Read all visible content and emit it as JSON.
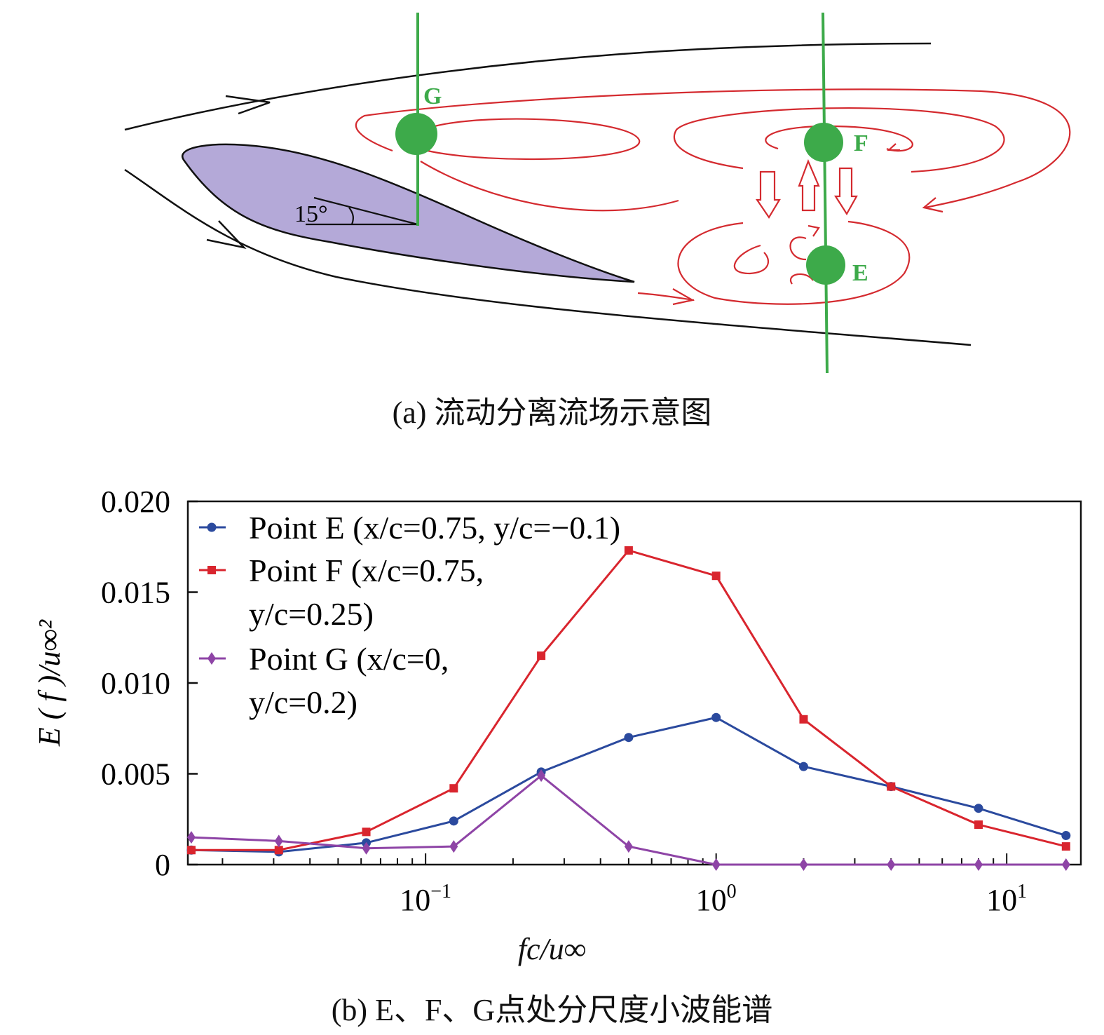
{
  "diagram": {
    "caption": "(a) 流动分离流场示意图",
    "labels": {
      "G": "G",
      "F": "F",
      "E": "E",
      "angle": "15°"
    },
    "colors": {
      "airfoil": "#b4a9d8",
      "streamline": "#111111",
      "vortex": "#d42a2f",
      "probe": "#3daa4a"
    }
  },
  "chart_data": {
    "type": "line",
    "caption": "(b) E、F、G点处分尺度小波能谱",
    "xlabel": "fc/u∞",
    "ylabel": "E ( f )/u∞²",
    "xscale": "log",
    "xlim": [
      0.0152,
      18
    ],
    "ylim": [
      0,
      0.02
    ],
    "yticks": [
      "0",
      "0.005",
      "0.010",
      "0.015",
      "0.020"
    ],
    "ytick_values": [
      0,
      0.005,
      0.01,
      0.015,
      0.02
    ],
    "xticks": [
      {
        "value": 0.1,
        "base": "10",
        "exp": "−1"
      },
      {
        "value": 1,
        "base": "10",
        "exp": "0"
      },
      {
        "value": 10,
        "base": "10",
        "exp": "1"
      }
    ],
    "grid": false,
    "legend_position": "top-left",
    "x": [
      0.015625,
      0.03125,
      0.0625,
      0.125,
      0.25,
      0.5,
      1,
      2,
      4,
      8,
      16
    ],
    "series": [
      {
        "name": "Point E (x/c=0.75, y/c=−0.1)",
        "legend_lines": [
          "Point E (x/c=0.75, y/c=−0.1)"
        ],
        "color": "#2b4a9e",
        "marker": "circle",
        "values": [
          0.0008,
          0.0007,
          0.0012,
          0.0024,
          0.0051,
          0.007,
          0.0081,
          0.0054,
          0.0043,
          0.0031,
          0.0016
        ]
      },
      {
        "name": "Point F (x/c=0.75, y/c=0.25)",
        "legend_lines": [
          "Point F (x/c=0.75,",
          "y/c=0.25)"
        ],
        "color": "#d9252e",
        "marker": "square",
        "values": [
          0.0008,
          0.0008,
          0.0018,
          0.0042,
          0.0115,
          0.0173,
          0.0159,
          0.008,
          0.0043,
          0.0022,
          0.001
        ]
      },
      {
        "name": "Point G (x/c=0, y/c=0.2)",
        "legend_lines": [
          "Point G (x/c=0,",
          "y/c=0.2)"
        ],
        "color": "#8e44a6",
        "marker": "diamond",
        "values": [
          0.0015,
          0.0013,
          0.0009,
          0.001,
          0.0049,
          0.001,
          0.0,
          0.0,
          0.0,
          0.0,
          0.0
        ]
      }
    ]
  }
}
